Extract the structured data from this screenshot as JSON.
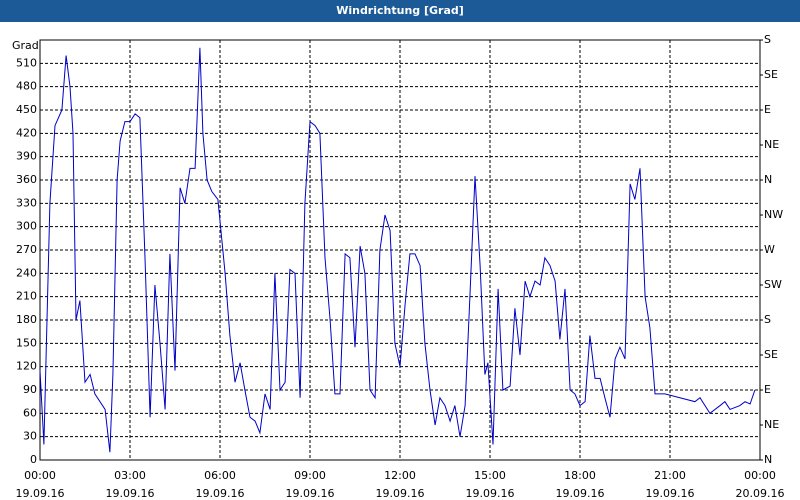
{
  "chart_data": {
    "type": "line",
    "title": "Windrichtung [Grad]",
    "y_label": "Grad",
    "xlim": [
      0,
      24
    ],
    "xticks": [
      {
        "value": 0,
        "label": "00:00 19.09.16"
      },
      {
        "value": 3,
        "label": "03:00 19.09.16"
      },
      {
        "value": 6,
        "label": "06:00 19.09.16"
      },
      {
        "value": 9,
        "label": "09:00 19.09.16"
      },
      {
        "value": 12,
        "label": "12:00 19.09.16"
      },
      {
        "value": 15,
        "label": "15:00 19.09.16"
      },
      {
        "value": 18,
        "label": "18:00 19.09.16"
      },
      {
        "value": 21,
        "label": "21:00 19.09.16"
      },
      {
        "value": 24,
        "label": "00:00 20.09.16"
      }
    ],
    "ylim": [
      0,
      540
    ],
    "yticks": [
      0,
      30,
      60,
      90,
      120,
      150,
      180,
      210,
      240,
      270,
      300,
      330,
      360,
      390,
      420,
      450,
      480,
      510
    ],
    "y2lim": [
      0,
      540
    ],
    "y2ticks": [
      {
        "value": 0,
        "label": "N"
      },
      {
        "value": 45,
        "label": "NE"
      },
      {
        "value": 90,
        "label": "E"
      },
      {
        "value": 135,
        "label": "SE"
      },
      {
        "value": 180,
        "label": "S"
      },
      {
        "value": 225,
        "label": "SW"
      },
      {
        "value": 270,
        "label": "W"
      },
      {
        "value": 315,
        "label": "NW"
      },
      {
        "value": 360,
        "label": "N"
      },
      {
        "value": 405,
        "label": "NE"
      },
      {
        "value": 450,
        "label": "E"
      },
      {
        "value": 495,
        "label": "SE"
      },
      {
        "value": 540,
        "label": "S"
      }
    ],
    "grid": true,
    "series": [
      {
        "color": "#0000c8",
        "x": [
          0,
          0.13,
          0.33,
          0.5,
          0.73,
          0.87,
          1,
          1.1,
          1.2,
          1.33,
          1.5,
          1.67,
          1.83,
          2.17,
          2.33,
          2.43,
          2.57,
          2.67,
          2.83,
          3,
          3.17,
          3.33,
          3.5,
          3.67,
          3.83,
          4,
          4.17,
          4.33,
          4.5,
          4.67,
          4.83,
          5,
          5.17,
          5.33,
          5.43,
          5.57,
          5.73,
          5.93,
          6.17,
          6.33,
          6.5,
          6.67,
          6.83,
          7,
          7.17,
          7.33,
          7.5,
          7.67,
          7.83,
          8,
          8.17,
          8.33,
          8.5,
          8.67,
          8.83,
          9,
          9.17,
          9.33,
          9.5,
          9.67,
          9.83,
          10,
          10.17,
          10.33,
          10.5,
          10.67,
          10.83,
          11,
          11.17,
          11.33,
          11.5,
          11.67,
          11.83,
          12,
          12.17,
          12.33,
          12.5,
          12.67,
          12.83,
          13,
          13.17,
          13.33,
          13.5,
          13.67,
          13.83,
          14,
          14.17,
          14.33,
          14.5,
          14.67,
          14.83,
          14.93,
          15.1,
          15.27,
          15.43,
          15.67,
          15.83,
          16,
          16.17,
          16.33,
          16.5,
          16.67,
          16.83,
          17,
          17.17,
          17.33,
          17.5,
          17.67,
          17.83,
          18,
          18.17,
          18.33,
          18.5,
          18.67,
          18.83,
          19,
          19.17,
          19.33,
          19.5,
          19.67,
          19.83,
          20,
          20.17,
          20.33,
          20.5,
          20.83,
          21.33,
          21.83,
          22,
          22.33,
          22.67,
          22.83,
          23,
          23.33,
          23.5,
          23.67,
          23.83
        ],
        "values": [
          115,
          20,
          330,
          430,
          450,
          520,
          480,
          420,
          180,
          205,
          100,
          110,
          85,
          65,
          10,
          110,
          360,
          410,
          435,
          435,
          445,
          440,
          260,
          55,
          225,
          150,
          65,
          265,
          115,
          350,
          330,
          375,
          375,
          530,
          420,
          360,
          345,
          335,
          240,
          160,
          100,
          125,
          90,
          55,
          50,
          35,
          85,
          65,
          240,
          90,
          100,
          245,
          240,
          80,
          330,
          435,
          430,
          420,
          260,
          180,
          85,
          85,
          265,
          260,
          145,
          275,
          240,
          90,
          80,
          270,
          315,
          295,
          150,
          120,
          200,
          265,
          265,
          250,
          150,
          90,
          45,
          80,
          70,
          50,
          70,
          30,
          70,
          210,
          365,
          250,
          110,
          125,
          20,
          220,
          90,
          95,
          195,
          135,
          230,
          210,
          230,
          225,
          260,
          250,
          230,
          155,
          220,
          90,
          85,
          70,
          75,
          160,
          105,
          105,
          80,
          55,
          130,
          145,
          130,
          355,
          335,
          375,
          210,
          170,
          85,
          85,
          80,
          75,
          80,
          60,
          70,
          75,
          65,
          70,
          75,
          72,
          90
        ]
      }
    ]
  }
}
